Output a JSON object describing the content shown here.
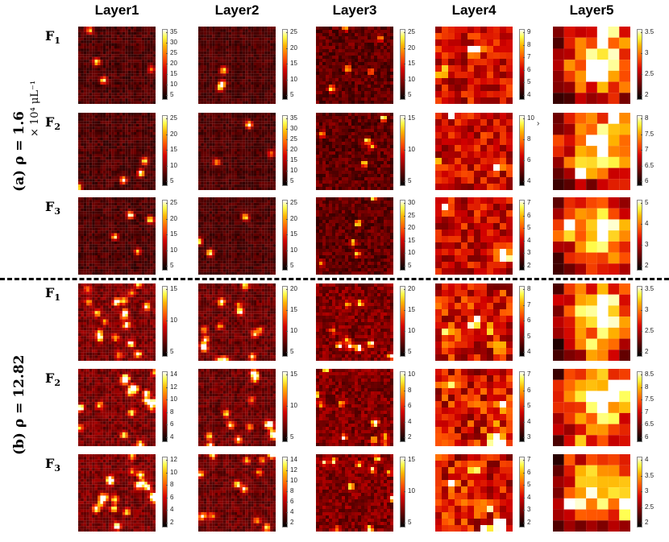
{
  "layers": [
    "Layer1",
    "Layer2",
    "Layer3",
    "Layer4",
    "Layer5"
  ],
  "features": [
    "F",
    "F",
    "F"
  ],
  "feature_subs": [
    "1",
    "2",
    "3"
  ],
  "groups": [
    {
      "label": "(a) ρ = 1.6",
      "unit": "× 10⁴ μL⁻¹"
    },
    {
      "label": "(b) ρ = 12.82",
      "unit": ""
    }
  ],
  "stray_mark": "›",
  "chart_data": [
    {
      "type": "heatmap",
      "group": "(a) ρ = 1.6",
      "feature": "F1",
      "layer": "Layer1",
      "grid": 28,
      "colorbar_ticks": [
        "35",
        "30",
        "25",
        "20",
        "15",
        "10",
        "5"
      ]
    },
    {
      "type": "heatmap",
      "group": "(a) ρ = 1.6",
      "feature": "F1",
      "layer": "Layer2",
      "grid": 28,
      "colorbar_ticks": [
        "25",
        "20",
        "15",
        "10",
        "5"
      ]
    },
    {
      "type": "heatmap",
      "group": "(a) ρ = 1.6",
      "feature": "F1",
      "layer": "Layer3",
      "grid": 24,
      "colorbar_ticks": [
        "25",
        "20",
        "15",
        "10",
        "5"
      ]
    },
    {
      "type": "heatmap",
      "group": "(a) ρ = 1.6",
      "feature": "F1",
      "layer": "Layer4",
      "grid": 12,
      "colorbar_ticks": [
        "9",
        "8",
        "7",
        "6",
        "5",
        "4"
      ]
    },
    {
      "type": "heatmap",
      "group": "(a) ρ = 1.6",
      "feature": "F1",
      "layer": "Layer5",
      "grid": 7,
      "colorbar_ticks": [
        "3.5",
        "3",
        "2.5",
        "2"
      ]
    },
    {
      "type": "heatmap",
      "group": "(a) ρ = 1.6",
      "feature": "F2",
      "layer": "Layer1",
      "grid": 28,
      "colorbar_ticks": [
        "25",
        "20",
        "15",
        "10",
        "5"
      ]
    },
    {
      "type": "heatmap",
      "group": "(a) ρ = 1.6",
      "feature": "F2",
      "layer": "Layer2",
      "grid": 28,
      "colorbar_ticks": [
        "35",
        "30",
        "25",
        "20",
        "15",
        "10",
        "5"
      ]
    },
    {
      "type": "heatmap",
      "group": "(a) ρ = 1.6",
      "feature": "F2",
      "layer": "Layer3",
      "grid": 24,
      "colorbar_ticks": [
        "15",
        "10",
        "5"
      ]
    },
    {
      "type": "heatmap",
      "group": "(a) ρ = 1.6",
      "feature": "F2",
      "layer": "Layer4",
      "grid": 12,
      "colorbar_ticks": [
        "10",
        "8",
        "6",
        "4"
      ]
    },
    {
      "type": "heatmap",
      "group": "(a) ρ = 1.6",
      "feature": "F2",
      "layer": "Layer5",
      "grid": 7,
      "colorbar_ticks": [
        "8",
        "7.5",
        "7",
        "6.5",
        "6"
      ]
    },
    {
      "type": "heatmap",
      "group": "(a) ρ = 1.6",
      "feature": "F3",
      "layer": "Layer1",
      "grid": 28,
      "colorbar_ticks": [
        "25",
        "20",
        "15",
        "10",
        "5"
      ]
    },
    {
      "type": "heatmap",
      "group": "(a) ρ = 1.6",
      "feature": "F3",
      "layer": "Layer2",
      "grid": 28,
      "colorbar_ticks": [
        "25",
        "20",
        "15",
        "10",
        "5"
      ]
    },
    {
      "type": "heatmap",
      "group": "(a) ρ = 1.6",
      "feature": "F3",
      "layer": "Layer3",
      "grid": 24,
      "colorbar_ticks": [
        "30",
        "25",
        "20",
        "15",
        "10",
        "5"
      ]
    },
    {
      "type": "heatmap",
      "group": "(a) ρ = 1.6",
      "feature": "F3",
      "layer": "Layer4",
      "grid": 12,
      "colorbar_ticks": [
        "7",
        "6",
        "5",
        "4",
        "3",
        "2"
      ]
    },
    {
      "type": "heatmap",
      "group": "(a) ρ = 1.6",
      "feature": "F3",
      "layer": "Layer5",
      "grid": 7,
      "colorbar_ticks": [
        "5",
        "4",
        "3",
        "2"
      ]
    },
    {
      "type": "heatmap",
      "group": "(b) ρ = 12.82",
      "feature": "F1",
      "layer": "Layer1",
      "grid": 28,
      "colorbar_ticks": [
        "15",
        "10",
        "5"
      ]
    },
    {
      "type": "heatmap",
      "group": "(b) ρ = 12.82",
      "feature": "F1",
      "layer": "Layer2",
      "grid": 28,
      "colorbar_ticks": [
        "20",
        "15",
        "10",
        "5"
      ]
    },
    {
      "type": "heatmap",
      "group": "(b) ρ = 12.82",
      "feature": "F1",
      "layer": "Layer3",
      "grid": 24,
      "colorbar_ticks": [
        "20",
        "15",
        "10",
        "5"
      ]
    },
    {
      "type": "heatmap",
      "group": "(b) ρ = 12.82",
      "feature": "F1",
      "layer": "Layer4",
      "grid": 12,
      "colorbar_ticks": [
        "8",
        "7",
        "6",
        "5",
        "4"
      ]
    },
    {
      "type": "heatmap",
      "group": "(b) ρ = 12.82",
      "feature": "F1",
      "layer": "Layer5",
      "grid": 7,
      "colorbar_ticks": [
        "3.5",
        "3",
        "2.5",
        "2"
      ]
    },
    {
      "type": "heatmap",
      "group": "(b) ρ = 12.82",
      "feature": "F2",
      "layer": "Layer1",
      "grid": 28,
      "colorbar_ticks": [
        "14",
        "12",
        "10",
        "8",
        "6",
        "4"
      ]
    },
    {
      "type": "heatmap",
      "group": "(b) ρ = 12.82",
      "feature": "F2",
      "layer": "Layer2",
      "grid": 28,
      "colorbar_ticks": [
        "15",
        "10",
        "5"
      ]
    },
    {
      "type": "heatmap",
      "group": "(b) ρ = 12.82",
      "feature": "F2",
      "layer": "Layer3",
      "grid": 24,
      "colorbar_ticks": [
        "10",
        "8",
        "6",
        "4",
        "2"
      ]
    },
    {
      "type": "heatmap",
      "group": "(b) ρ = 12.82",
      "feature": "F2",
      "layer": "Layer4",
      "grid": 12,
      "colorbar_ticks": [
        "7",
        "6",
        "5",
        "4",
        "3"
      ]
    },
    {
      "type": "heatmap",
      "group": "(b) ρ = 12.82",
      "feature": "F2",
      "layer": "Layer5",
      "grid": 7,
      "colorbar_ticks": [
        "8.5",
        "8",
        "7.5",
        "7",
        "6.5",
        "6"
      ]
    },
    {
      "type": "heatmap",
      "group": "(b) ρ = 12.82",
      "feature": "F3",
      "layer": "Layer1",
      "grid": 28,
      "colorbar_ticks": [
        "12",
        "10",
        "8",
        "6",
        "4",
        "2"
      ]
    },
    {
      "type": "heatmap",
      "group": "(b) ρ = 12.82",
      "feature": "F3",
      "layer": "Layer2",
      "grid": 28,
      "colorbar_ticks": [
        "14",
        "12",
        "10",
        "8",
        "6",
        "4",
        "2"
      ]
    },
    {
      "type": "heatmap",
      "group": "(b) ρ = 12.82",
      "feature": "F3",
      "layer": "Layer3",
      "grid": 24,
      "colorbar_ticks": [
        "15",
        "10",
        "5"
      ]
    },
    {
      "type": "heatmap",
      "group": "(b) ρ = 12.82",
      "feature": "F3",
      "layer": "Layer4",
      "grid": 12,
      "colorbar_ticks": [
        "7",
        "6",
        "5",
        "4",
        "3",
        "2"
      ]
    },
    {
      "type": "heatmap",
      "group": "(b) ρ = 12.82",
      "feature": "F3",
      "layer": "Layer5",
      "grid": 7,
      "colorbar_ticks": [
        "4",
        "3.5",
        "3",
        "2.5",
        "2"
      ]
    }
  ]
}
